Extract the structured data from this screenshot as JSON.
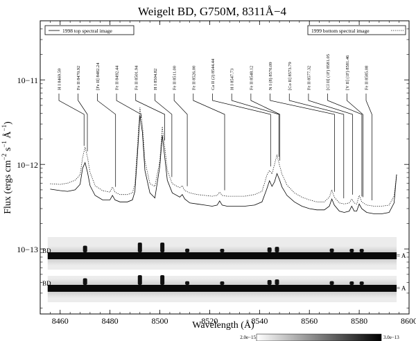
{
  "chart_data": {
    "type": "line",
    "title": "Weigelt BD, G750M, 8311Å−4",
    "xlabel": "Wavelength (Å)",
    "ylabel": "Flux (ergs cm−2 s−1 Å−1)",
    "y_log_scale": true,
    "xlim": [
      8452,
      8600
    ],
    "ylim": [
      1.7e-14,
      5e-11
    ],
    "x_ticks": [
      8460,
      8480,
      8500,
      8520,
      8540,
      8560,
      8580,
      8600
    ],
    "y_ticks": [
      {
        "value": 1e-11,
        "label": "10−11"
      },
      {
        "value": 1e-12,
        "label": "10−12"
      },
      {
        "value": 1e-13,
        "label": "10−13"
      }
    ],
    "legend": {
      "left": {
        "label": "1998 top spectral image",
        "style": "solid"
      },
      "right": {
        "label": "1999 bottom spectral image",
        "style": "dotted"
      }
    },
    "series": [
      {
        "name": "1998 top spectral image",
        "style": "solid",
        "x": [
          8456,
          8460,
          8463,
          8466,
          8468,
          8469,
          8470,
          8471,
          8472,
          8474,
          8477,
          8480,
          8481,
          8482,
          8484,
          8487,
          8489,
          8490,
          8491,
          8492,
          8493,
          8494,
          8496,
          8498,
          8500,
          8501,
          8502,
          8503,
          8505,
          8508,
          8509,
          8510,
          8512,
          8515,
          8518,
          8521,
          8523,
          8524,
          8525,
          8527,
          8530,
          8534,
          8538,
          8541,
          8543,
          8544,
          8545,
          8546,
          8547,
          8548,
          8549,
          8551,
          8554,
          8557,
          8560,
          8563,
          8566,
          8568,
          8569,
          8570,
          8572,
          8574,
          8576,
          8577,
          8578,
          8579,
          8580,
          8581,
          8583,
          8586,
          8589,
          8592,
          8594,
          8595
        ],
        "values": [
          5.1e-13,
          4.9e-13,
          4.8e-13,
          5e-13,
          5.8e-13,
          9e-13,
          1.05e-12,
          8e-13,
          5.6e-13,
          4.3e-13,
          3.8e-13,
          3.8e-13,
          4.3e-13,
          3.8e-13,
          3.6e-13,
          3.6e-13,
          3.8e-13,
          4.8e-13,
          1.3e-12,
          3.8e-12,
          2.4e-12,
          8.5e-13,
          4.6e-13,
          4e-13,
          9.5e-13,
          2.2e-12,
          1.2e-12,
          6.5e-13,
          4.6e-13,
          4.1e-13,
          4.4e-13,
          3.9e-13,
          3.5e-13,
          3.4e-13,
          3.3e-13,
          3.2e-13,
          3.3e-13,
          3.7e-13,
          3.3e-13,
          3.2e-13,
          3.2e-13,
          3.2e-13,
          3.3e-13,
          3.6e-13,
          5.2e-13,
          6.4e-13,
          5.5e-13,
          6.2e-13,
          7.8e-13,
          6.6e-13,
          5.4e-13,
          4.3e-13,
          3.6e-13,
          3.2e-13,
          3e-13,
          2.9e-13,
          2.9e-13,
          3.2e-13,
          3.9e-13,
          3.3e-13,
          2.8e-13,
          2.7e-13,
          2.8e-13,
          3.2e-13,
          2.8e-13,
          2.8e-13,
          3.4e-13,
          3e-13,
          2.7e-13,
          2.6e-13,
          2.6e-13,
          2.7e-13,
          3.5e-13,
          7.6e-13
        ]
      },
      {
        "name": "1999 bottom spectral image",
        "style": "dotted",
        "x": [
          8456,
          8460,
          8463,
          8466,
          8468,
          8469,
          8470,
          8471,
          8472,
          8474,
          8477,
          8480,
          8481,
          8482,
          8484,
          8487,
          8489,
          8490,
          8491,
          8492,
          8493,
          8494,
          8496,
          8498,
          8500,
          8501,
          8502,
          8503,
          8505,
          8508,
          8509,
          8510,
          8512,
          8515,
          8518,
          8521,
          8523,
          8524,
          8525,
          8527,
          8530,
          8534,
          8538,
          8541,
          8543,
          8544,
          8545,
          8546,
          8547,
          8548,
          8549,
          8551,
          8554,
          8557,
          8560,
          8563,
          8566,
          8568,
          8569,
          8570,
          8572,
          8574,
          8576,
          8577,
          8578,
          8579,
          8580,
          8581,
          8583,
          8586,
          8589,
          8592,
          8594,
          8595
        ],
        "values": [
          5.9e-13,
          5.8e-13,
          6e-13,
          6.5e-13,
          7.5e-13,
          1.2e-12,
          1.6e-12,
          1.2e-12,
          8e-13,
          5.6e-13,
          4.9e-13,
          4.7e-13,
          5.4e-13,
          4.7e-13,
          4.4e-13,
          4.4e-13,
          4.6e-13,
          5.8e-13,
          1.6e-12,
          4.7e-12,
          3e-12,
          1.1e-12,
          5.9e-13,
          5.5e-13,
          1.1e-12,
          2.8e-12,
          1.6e-12,
          8.5e-13,
          5.9e-13,
          5.3e-13,
          5.6e-13,
          4.9e-13,
          4.6e-13,
          4.4e-13,
          4.3e-13,
          4.2e-13,
          4.3e-13,
          4.7e-13,
          4.3e-13,
          4.2e-13,
          4.2e-13,
          4.2e-13,
          4.4e-13,
          4.8e-13,
          7.5e-13,
          8.5e-13,
          7.7e-13,
          1e-12,
          1.3e-12,
          9.8e-13,
          7.7e-13,
          5.7e-13,
          4.6e-13,
          4.1e-13,
          3.8e-13,
          3.6e-13,
          3.6e-13,
          4.1e-13,
          5e-13,
          4.1e-13,
          3.5e-13,
          3.4e-13,
          3.5e-13,
          3.9e-13,
          3.5e-13,
          3.4e-13,
          4.3e-13,
          3.6e-13,
          3.3e-13,
          3.2e-13,
          3.2e-13,
          3.3e-13,
          4.2e-13,
          7.6e-13
        ]
      }
    ],
    "line_ids": [
      {
        "label": "H I 8469.59",
        "wl": 8469.59
      },
      {
        "label": "Fe II 8470.92",
        "wl": 8470.92
      },
      {
        "label": "[Fe II] 8482.24",
        "wl": 8482.24
      },
      {
        "label": "Fe II 8492.44",
        "wl": 8492.44
      },
      {
        "label": "Fe II 8501.94",
        "wl": 8501.94
      },
      {
        "label": "H I 8504.82",
        "wl": 8504.82
      },
      {
        "label": "Fe II 8511.00",
        "wl": 8511.0
      },
      {
        "label": "Fe II 8526.00",
        "wl": 8526.0
      },
      {
        "label": "Ca II (2) 8544.44",
        "wl": 8544.44
      },
      {
        "label": "H I 8547.73",
        "wl": 8547.73
      },
      {
        "label": "Fe II 8548.12",
        "wl": 8548.12
      },
      {
        "label": "N I (8) 8570.09",
        "wl": 8570.09
      },
      {
        "label": "[Co II] 8573.79",
        "wl": 8573.79
      },
      {
        "label": "Fe II 8577.32",
        "wl": 8577.32
      },
      {
        "label": "[Cl II] (1F) 8581.05",
        "wl": 8581.05
      },
      {
        "label": "[V II] (1F) 8581.46",
        "wl": 8581.46
      },
      {
        "label": "Fe II 8585.08",
        "wl": 8585.08
      }
    ],
    "spectral_images": [
      {
        "left_label": "BD",
        "right_label": "A"
      },
      {
        "left_label": "BD",
        "right_label": "A"
      }
    ],
    "colorbar": {
      "min_label": "2.0e−15",
      "max_label": "3.0e−13",
      "colors": [
        "#ffffff",
        "#000000"
      ]
    },
    "grid": false
  }
}
